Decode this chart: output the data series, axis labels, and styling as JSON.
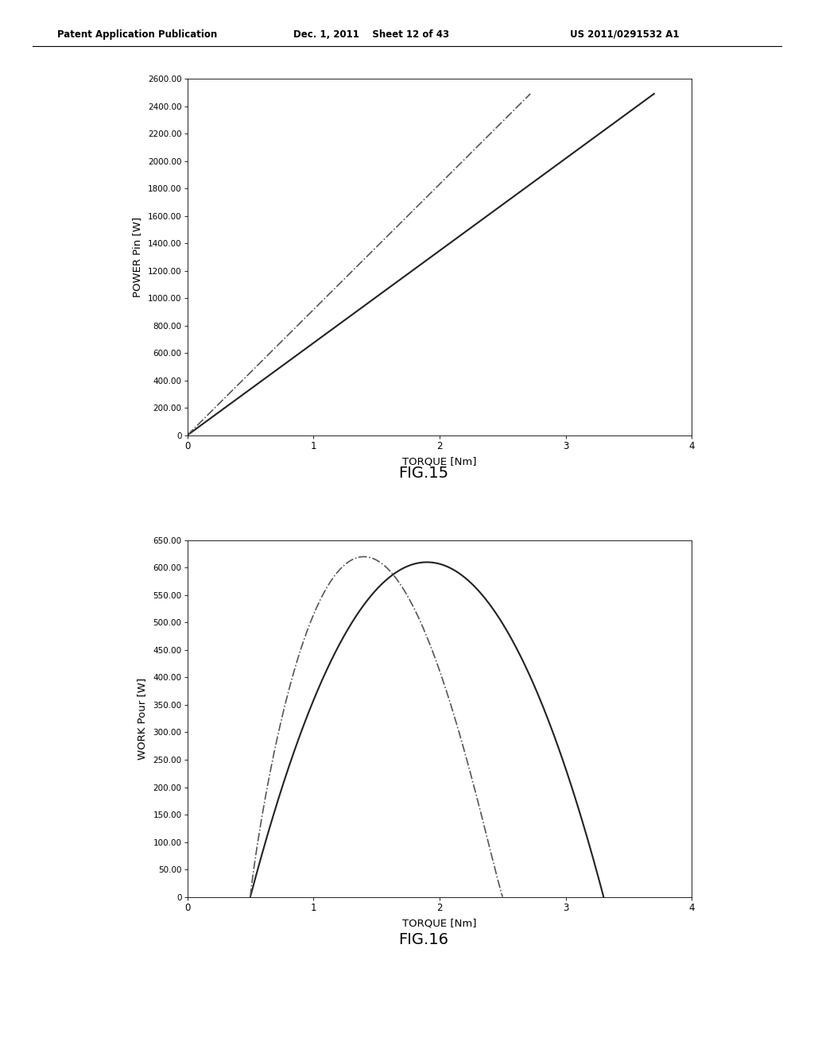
{
  "header_left": "Patent Application Publication",
  "header_center": "Dec. 1, 2011    Sheet 12 of 43",
  "header_right": "US 2011/0291532 A1",
  "fig15_label": "FIG.15",
  "fig16_label": "FIG.16",
  "fig15": {
    "xlabel": "TORQUE [Nm]",
    "ylabel": "POWER Pin [W]",
    "xlim": [
      0,
      4
    ],
    "ylim": [
      0,
      2600
    ],
    "xticks": [
      0,
      1,
      2,
      3,
      4
    ],
    "yticks": [
      0,
      200,
      400,
      600,
      800,
      1000,
      1200,
      1400,
      1600,
      1800,
      2000,
      2200,
      2400,
      2600
    ],
    "ytick_labels": [
      "0",
      "200.00",
      "400.00",
      "600.00",
      "800.00",
      "1000.00",
      "1200.00",
      "1400.00",
      "1600.00",
      "1800.00",
      "2000.00",
      "2200.00",
      "2400.00",
      "2600.00"
    ],
    "line1_x": [
      0,
      3.7
    ],
    "line1_y": [
      0,
      2490
    ],
    "line2_x": [
      0,
      2.72
    ],
    "line2_y": [
      0,
      2490
    ]
  },
  "fig16": {
    "xlabel": "TORQUE [Nm]",
    "ylabel": "WORK Pour [W]",
    "xlim": [
      0,
      4
    ],
    "ylim": [
      0,
      650
    ],
    "xticks": [
      0,
      1,
      2,
      3,
      4
    ],
    "yticks": [
      0,
      50,
      100,
      150,
      200,
      250,
      300,
      350,
      400,
      450,
      500,
      550,
      600,
      650
    ],
    "ytick_labels": [
      "0",
      "50.00",
      "100.00",
      "150.00",
      "200.00",
      "250.00",
      "300.00",
      "350.00",
      "400.00",
      "450.00",
      "500.00",
      "550.00",
      "600.00",
      "650.00"
    ],
    "solid_x_start": 0.5,
    "solid_x_end": 3.3,
    "solid_peak_x": 1.9,
    "solid_peak_y": 610,
    "dashdot_x_start": 0.5,
    "dashdot_x_end": 2.5,
    "dashdot_peak_x": 1.4,
    "dashdot_peak_y": 620
  },
  "bg_color": "#ffffff",
  "line_color_solid": "#222222",
  "line_color_dashdot": "#555555"
}
